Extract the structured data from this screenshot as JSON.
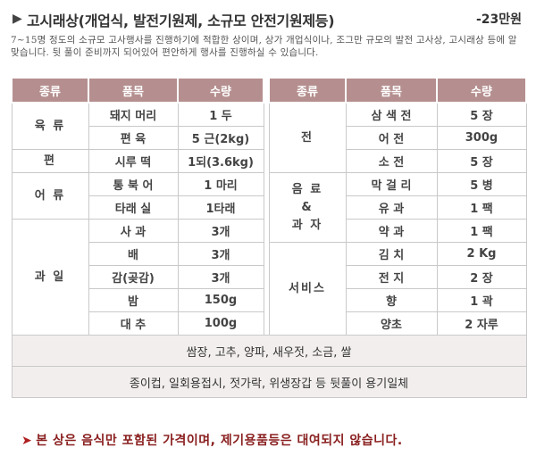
{
  "header": {
    "title": "고시래상(개업식, 발전기원제, 소규모 안전기원제등)",
    "price": "-23만원",
    "description": "7~15명 정도의 소규모 고사행사를 진행하기에 적합한 상이며, 상가 개업식이나, 조그만 규모의 발전 고사상, 고시래상 등에 알맞습니다. 뒷 풀이 준비까지 되어있어 편안하게 행사를 진행하실 수 있습니다."
  },
  "columns": {
    "left": [
      "종류",
      "품목",
      "수량"
    ],
    "right": [
      "종류",
      "품목",
      "수량"
    ]
  },
  "left_groups": [
    {
      "category": "육 류",
      "items": [
        {
          "name": "돼지 머리",
          "qty": "1 두"
        },
        {
          "name": "편 육",
          "qty": "5 근(2kg)"
        }
      ]
    },
    {
      "category": "편",
      "items": [
        {
          "name": "시루 떡",
          "qty": "1되(3.6kg)"
        }
      ]
    },
    {
      "category": "어 류",
      "items": [
        {
          "name": "통 북 어",
          "qty": "1 마리"
        },
        {
          "name": "타래 실",
          "qty": "1타래"
        }
      ]
    },
    {
      "category": "과 일",
      "items": [
        {
          "name": "사 과",
          "qty": "3개"
        },
        {
          "name": "배",
          "qty": "3개"
        },
        {
          "name": "감(곶감)",
          "qty": "3개"
        },
        {
          "name": "밤",
          "qty": "150g"
        },
        {
          "name": "대 추",
          "qty": "100g"
        }
      ]
    }
  ],
  "right_groups": [
    {
      "category": "전",
      "items": [
        {
          "name": "삼 색 전",
          "qty": "5 장"
        },
        {
          "name": "어 전",
          "qty": "300g"
        },
        {
          "name": "소 전",
          "qty": "5 장"
        }
      ]
    },
    {
      "category_lines": [
        "음 료",
        "&",
        "과 자"
      ],
      "items": [
        {
          "name": "막 걸 리",
          "qty": "5 병"
        },
        {
          "name": "유 과",
          "qty": "1 팩"
        },
        {
          "name": "약 과",
          "qty": "1 팩"
        }
      ]
    },
    {
      "category": "서비스",
      "items": [
        {
          "name": "김 치",
          "qty": "2 Kg"
        },
        {
          "name": "전 지",
          "qty": "2 장"
        },
        {
          "name": "향",
          "qty": "1 곽"
        },
        {
          "name": "양초",
          "qty": "2 자루"
        }
      ]
    }
  ],
  "extras": [
    "쌈장, 고추, 양파, 새우젓, 소금, 쌀",
    "종이컵, 일회용접시, 젓가락, 위생장갑 등 뒷풀이 용기일체"
  ],
  "footer_note": "본 상은 음식만 포함된 가격이며, 제기용품등은 대여되지 않습니다.",
  "colors": {
    "header_bg": "#b58f8f",
    "category_text": "#8a2020",
    "extras_bg": "#f3eeee"
  }
}
